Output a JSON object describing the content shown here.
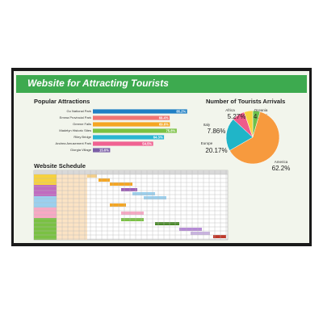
{
  "header": {
    "title": "Website for Attracting Tourists"
  },
  "chart_data": [
    {
      "type": "hbar",
      "title": "Popular Attractions",
      "categories": [
        "Go National Park",
        "Emma Provincial Park",
        "Greene Falls",
        "Madelyn Historic Sites",
        "Riley Bridge",
        "Andrea Amusement Park",
        "Giorgia Village"
      ],
      "values": [
        85.2,
        69.4,
        69.6,
        75.8,
        64.3,
        54.5,
        15.6
      ],
      "value_labels": [
        "85.2%",
        "69.4%",
        "69.6%",
        "75.8%",
        "64.3%",
        "54.5%",
        "15.6%"
      ],
      "colors": [
        "#1f7fc4",
        "#f07575",
        "#f5a623",
        "#7ac143",
        "#29b6d2",
        "#f06292",
        "#7b5ea7"
      ]
    },
    {
      "type": "pie",
      "title": "Number of Tourists Arrivals",
      "categories": [
        "Oceania",
        "America",
        "Europe",
        "Italy",
        "Africa"
      ],
      "values": [
        4.5,
        62.2,
        20.17,
        7.86,
        5.27
      ],
      "value_labels": [
        "4.5%",
        "62.2%",
        "20.17%",
        "7.86%",
        "5.27%"
      ],
      "colors": [
        "#6cc04a",
        "#f79a3e",
        "#20b5c8",
        "#ef5b8a",
        "#f7d23e"
      ]
    }
  ],
  "schedule": {
    "title": "Website Schedule"
  }
}
